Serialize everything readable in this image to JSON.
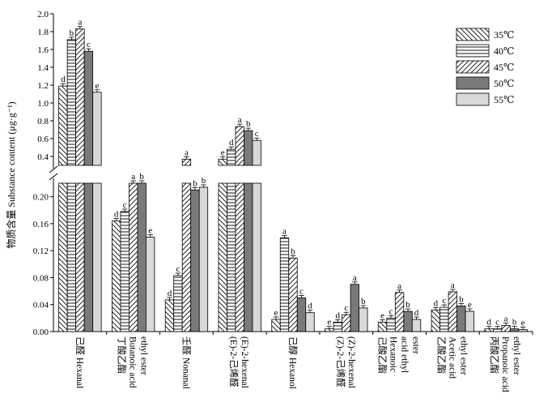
{
  "chart_data": {
    "type": "bar",
    "ylabel": "物质含量 Substance content (μg·g⁻¹)",
    "axis_break": {
      "lower_range": [
        0,
        0.22
      ],
      "upper_range": [
        0.3,
        2.0
      ]
    },
    "yticks_upper": [
      "2.0",
      "1.8",
      "1.6",
      "1.4",
      "1.2",
      "1.0",
      "0.8",
      "0.6",
      "0.4"
    ],
    "yticks_lower": [
      "0.20",
      "0.16",
      "0.12",
      "0.08",
      "0.04",
      "0.00"
    ],
    "categories": [
      [
        "己醛 Hexanal"
      ],
      [
        "丁酸乙酯",
        "Butanoic acid",
        "ethyl ester"
      ],
      [
        "壬醛 Nonanal"
      ],
      [
        "(E)-2-己烯醛",
        "(E)-2-hexenal"
      ],
      [
        "己醇 Hexanol"
      ],
      [
        "(Z)-2-己烯醛",
        "(Z)-2-hexenal"
      ],
      [
        "己酸乙酯",
        "Hexanoic",
        "acid ethyl",
        "ester"
      ],
      [
        "乙酸乙酯",
        "Acetic acid",
        "ethyl ester"
      ],
      [
        "丙酸乙酯",
        "Propanoic acid",
        "ethyl ester"
      ]
    ],
    "series": [
      {
        "name": "35℃",
        "pattern": "diag-back",
        "values": [
          1.19,
          0.164,
          0.047,
          0.37,
          0.018,
          0.004,
          0.014,
          0.032,
          0.004
        ],
        "letters": [
          "d",
          "d",
          "d",
          "e",
          "e",
          "e",
          "e",
          "d",
          "d"
        ]
      },
      {
        "name": "40℃",
        "pattern": "hlines",
        "values": [
          1.71,
          0.178,
          0.083,
          0.48,
          0.139,
          0.014,
          0.02,
          0.036,
          0.004
        ],
        "letters": [
          "b",
          "c",
          "c",
          "d",
          "a",
          "d",
          "c",
          "c",
          "c"
        ]
      },
      {
        "name": "45℃",
        "pattern": "diag-fwd",
        "values": [
          1.83,
          0.242,
          0.37,
          0.735,
          0.109,
          0.025,
          0.058,
          0.059,
          0.009
        ],
        "letters": [
          "a",
          "a",
          "a",
          "a",
          "b",
          "c",
          "a",
          "a",
          "a"
        ]
      },
      {
        "name": "50℃",
        "pattern": "dark",
        "values": [
          1.58,
          0.22,
          0.21,
          0.69,
          0.05,
          0.07,
          0.03,
          0.038,
          0.004
        ],
        "letters": [
          "c",
          "b",
          "b",
          "b",
          "c",
          "a",
          "b",
          "b",
          "b"
        ]
      },
      {
        "name": "55℃",
        "pattern": "light",
        "values": [
          1.12,
          0.14,
          0.214,
          0.58,
          0.028,
          0.035,
          0.018,
          0.03,
          0.003
        ],
        "letters": [
          "e",
          "e",
          "b",
          "c",
          "d",
          "b",
          "d",
          "e",
          "e"
        ]
      }
    ],
    "legend_position": "top-right",
    "grid": false
  }
}
